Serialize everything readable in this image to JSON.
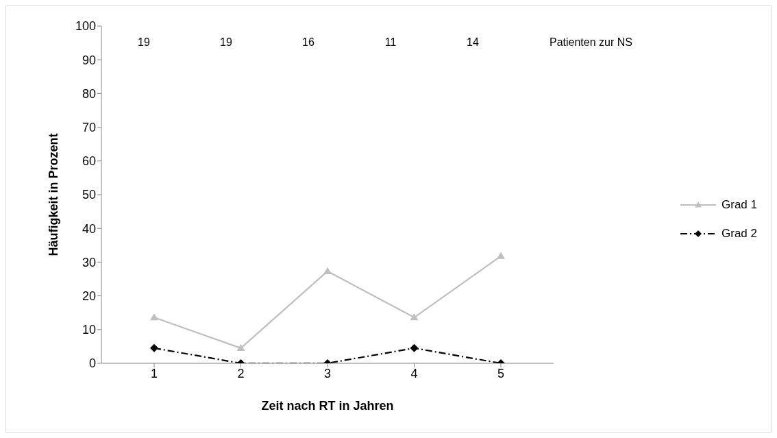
{
  "chart_data": {
    "type": "line",
    "xlabel": "Zeit nach RT in Jahren",
    "ylabel": "Häufigkeit in Prozent",
    "categories": [
      "1",
      "2",
      "3",
      "4",
      "5"
    ],
    "series": [
      {
        "name": "Grad 1",
        "color": "#bfbfbf",
        "marker": "triangle",
        "line_style": "solid",
        "values": [
          13.6,
          4.5,
          27.3,
          13.6,
          31.8
        ]
      },
      {
        "name": "Grad 2",
        "color": "#000000",
        "marker": "diamond",
        "line_style": "dashed",
        "values": [
          4.5,
          0,
          0,
          4.5,
          0
        ]
      }
    ],
    "ylim": [
      0,
      100
    ],
    "yticks": [
      0,
      10,
      20,
      30,
      40,
      50,
      60,
      70,
      80,
      90,
      100
    ],
    "grid": false,
    "legend": "right",
    "annotations": [
      "19",
      "19",
      "16",
      "11",
      "14",
      "Patienten zur NS"
    ]
  }
}
